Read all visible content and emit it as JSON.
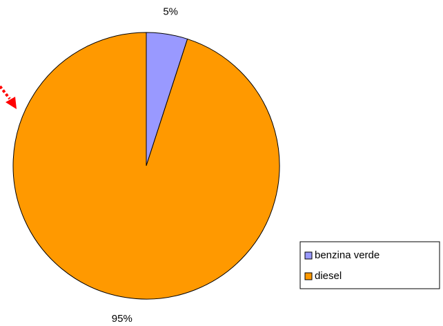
{
  "chart_data": {
    "type": "pie",
    "categories": [
      "benzina verde",
      "diesel"
    ],
    "values": [
      5,
      95
    ],
    "value_labels": [
      "5%",
      "95%"
    ],
    "colors": [
      "#9999ff",
      "#ff9900"
    ]
  }
}
